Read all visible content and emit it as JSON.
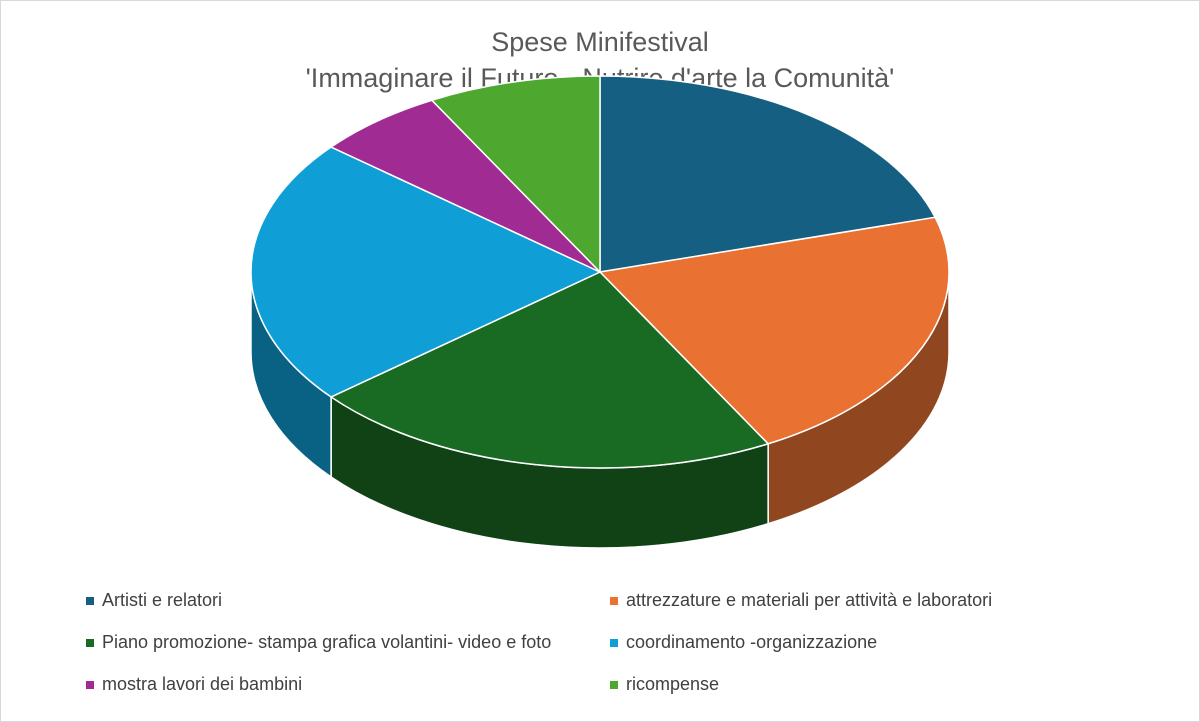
{
  "chart_data": {
    "type": "pie",
    "three_d": true,
    "title": "Spese Minifestival",
    "subtitle": "'Immaginare il Futuro - Nutrire d'arte la Comunità'",
    "legend_position": "bottom",
    "categories": [
      "Artisti e relatori",
      "attrezzature e materiali per attività e laboratori",
      "Piano promozione- stampa grafica volantini- video e foto",
      "coordinamento -organizzazione",
      "mostra lavori dei bambini",
      "ricompense"
    ],
    "values": [
      20.5,
      21.5,
      22.0,
      22.0,
      6.0,
      8.0
    ],
    "colors": [
      "#156082",
      "#E97132",
      "#196B24",
      "#0F9ED5",
      "#A02B93",
      "#4EA72E"
    ]
  }
}
